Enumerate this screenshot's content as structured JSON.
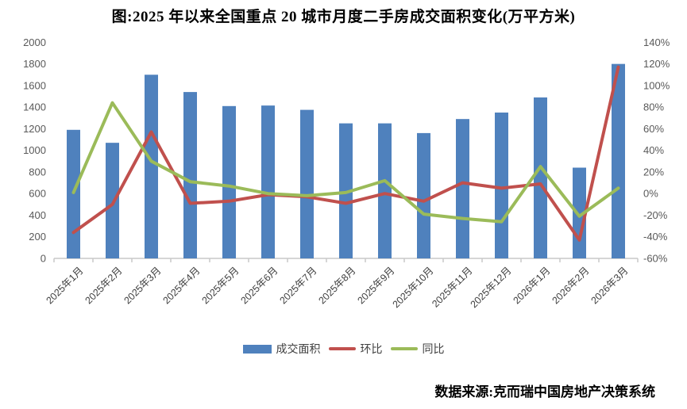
{
  "title": "图:2025 年以来全国重点 20 城市月度二手房成交面积变化(万平方米)",
  "source_note": "数据来源:克而瑞中国房地产决策系统",
  "colors": {
    "bar_blue": "#4F81BD",
    "mom_red": "#C0504D",
    "yoy_green": "#9BBB59",
    "axis_text": "#595959",
    "axis_line": "#C9C9C9",
    "title_text": "#000000"
  },
  "chart_data": {
    "type": "bar",
    "subtype": "combo bar + two lines, dual axis",
    "title": "图:2025 年以来全国重点 20 城市月度二手房成交面积变化(万平方米)",
    "categories": [
      "2025年1月",
      "2025年2月",
      "2025年3月",
      "2025年4月",
      "2025年5月",
      "2025年6月",
      "2025年7月",
      "2025年8月",
      "2025年9月",
      "2025年10月",
      "2025年11月",
      "2025年12月",
      "2026年1月",
      "2026年2月",
      "2026年3月"
    ],
    "series": [
      {
        "name": "成交面积",
        "type": "bar",
        "axis": "left",
        "color": "#4F81BD",
        "values": [
          1190,
          1070,
          1700,
          1540,
          1410,
          1415,
          1375,
          1250,
          1250,
          1160,
          1290,
          1350,
          1490,
          840,
          1800
        ]
      },
      {
        "name": "环比",
        "type": "line",
        "axis": "right",
        "color": "#C0504D",
        "values_pct": [
          -36,
          -10,
          57,
          -9,
          -7,
          -1,
          -3,
          -9,
          0,
          -7,
          10,
          5,
          9,
          -43,
          117
        ]
      },
      {
        "name": "同比",
        "type": "line",
        "axis": "right",
        "color": "#9BBB59",
        "values_pct": [
          1,
          84,
          30,
          11,
          7,
          0,
          -2,
          1,
          12,
          -19,
          -23,
          -26,
          25,
          -21,
          5
        ]
      }
    ],
    "left_axis": {
      "min": 0,
      "max": 2000,
      "step": 200,
      "ticks": [
        "0",
        "200",
        "400",
        "600",
        "800",
        "1000",
        "1200",
        "1400",
        "1600",
        "1800",
        "2000"
      ]
    },
    "right_axis": {
      "min": -60,
      "max": 140,
      "step": 20,
      "unit": "%",
      "ticks": [
        "-60%",
        "-40%",
        "-20%",
        "0%",
        "20%",
        "40%",
        "60%",
        "80%",
        "100%",
        "120%",
        "140%"
      ]
    },
    "grid": false,
    "legend_position": "bottom"
  }
}
